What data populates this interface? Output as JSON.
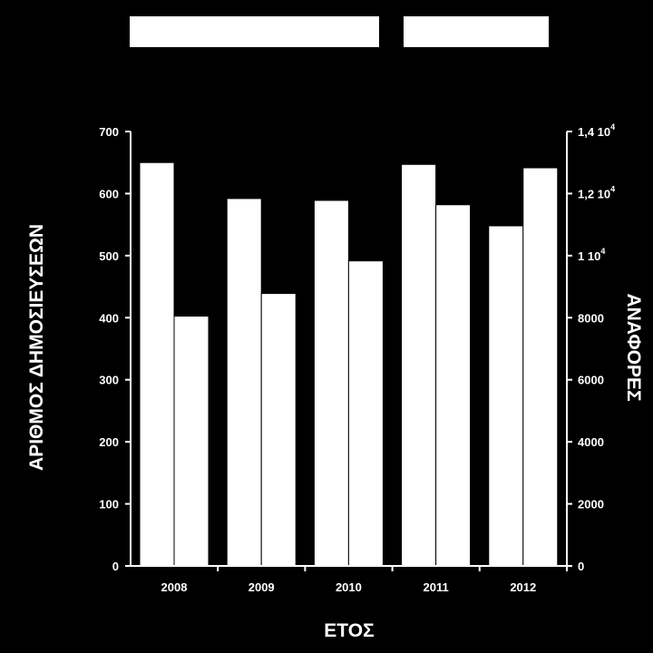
{
  "chart_data": {
    "type": "bar",
    "categories": [
      "2008",
      "2009",
      "2010",
      "2011",
      "2012"
    ],
    "series": [
      {
        "axis": "left",
        "values": [
          650,
          592,
          589,
          647,
          548
        ]
      },
      {
        "axis": "right",
        "values": [
          8050,
          8780,
          9830,
          11640,
          12830
        ]
      }
    ],
    "xlabel": "ΕΤΟΣ",
    "ylabel": "ΑΡΙΘΜΟΣ ΔΗΜΟΣΙΕΥΣΕΩΝ",
    "y2label": "ΑΝΑΦΟΡΕΣ",
    "ylim": [
      0,
      700
    ],
    "y2lim": [
      0,
      14000
    ],
    "yticks": [
      "0",
      "100",
      "200",
      "300",
      "400",
      "500",
      "600",
      "700"
    ],
    "y2ticks": [
      "0",
      "2000",
      "4000",
      "6000",
      "8000",
      "1 10",
      "1,2 10",
      "1,4 10"
    ],
    "y2tick_exponent": "4",
    "legend_boxes": 2,
    "grid": false,
    "colors": {
      "background": "#000000",
      "bars": "#ffffff",
      "axes": "#ffffff"
    }
  }
}
